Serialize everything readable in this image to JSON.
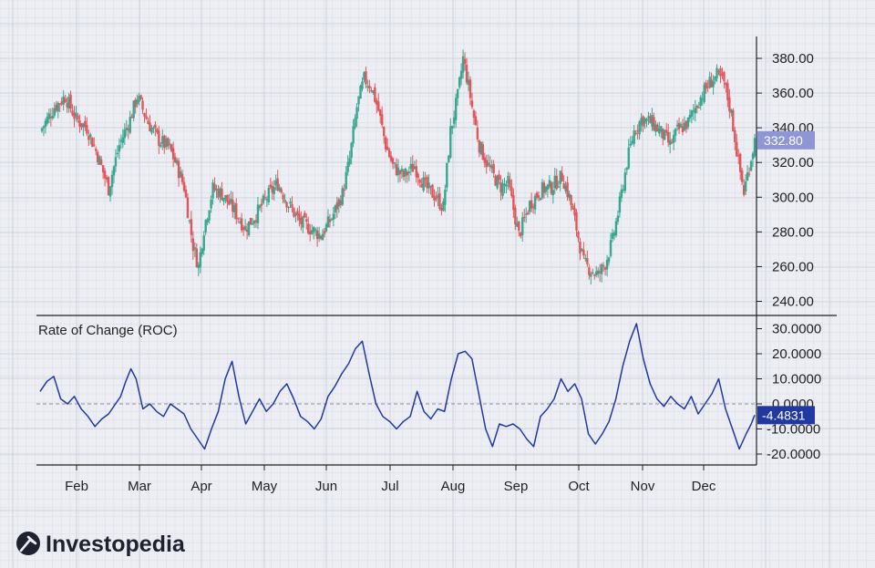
{
  "brand": {
    "name": "Investopedia"
  },
  "colors": {
    "background": "#eceef4",
    "grid_minor": "#dcdfe8",
    "grid_major": "#c9ccd6",
    "up": "#3aa68f",
    "down": "#e0575b",
    "roc_line": "#2138a0",
    "price_tag": "#8e96d3",
    "roc_tag": "#2138a0",
    "axis": "#222222"
  },
  "chart_data": [
    {
      "type": "candlestick",
      "title": "",
      "x_tick_labels": [
        "Feb",
        "Mar",
        "Apr",
        "May",
        "Jun",
        "Jul",
        "Aug",
        "Sep",
        "Oct",
        "Nov",
        "Dec"
      ],
      "y_tick_labels": [
        "240.00",
        "260.00",
        "280.00",
        "300.00",
        "320.00",
        "340.00",
        "360.00",
        "380.00"
      ],
      "ylim": [
        235,
        395
      ],
      "grid": true,
      "last_value_tag": "332.80",
      "close_path": [
        [
          0,
          338
        ],
        [
          8,
          352
        ],
        [
          14,
          358
        ],
        [
          20,
          345
        ],
        [
          26,
          340
        ],
        [
          32,
          324
        ],
        [
          38,
          305
        ],
        [
          44,
          330
        ],
        [
          50,
          345
        ],
        [
          54,
          358
        ],
        [
          60,
          343
        ],
        [
          66,
          333
        ],
        [
          72,
          328
        ],
        [
          76,
          318
        ],
        [
          80,
          306
        ],
        [
          85,
          272
        ],
        [
          88,
          260
        ],
        [
          91,
          282
        ],
        [
          96,
          305
        ],
        [
          101,
          302
        ],
        [
          108,
          292
        ],
        [
          114,
          282
        ],
        [
          120,
          290
        ],
        [
          126,
          300
        ],
        [
          132,
          308
        ],
        [
          138,
          296
        ],
        [
          144,
          286
        ],
        [
          150,
          282
        ],
        [
          156,
          278
        ],
        [
          162,
          288
        ],
        [
          168,
          302
        ],
        [
          172,
          322
        ],
        [
          176,
          352
        ],
        [
          180,
          368
        ],
        [
          184,
          364
        ],
        [
          188,
          350
        ],
        [
          192,
          330
        ],
        [
          196,
          318
        ],
        [
          202,
          312
        ],
        [
          208,
          318
        ],
        [
          214,
          306
        ],
        [
          220,
          300
        ],
        [
          224,
          294
        ],
        [
          228,
          338
        ],
        [
          232,
          358
        ],
        [
          235,
          380
        ],
        [
          238,
          364
        ],
        [
          241,
          346
        ],
        [
          244,
          330
        ],
        [
          248,
          320
        ],
        [
          252,
          312
        ],
        [
          256,
          306
        ],
        [
          260,
          308
        ],
        [
          266,
          278
        ],
        [
          272,
          296
        ],
        [
          278,
          304
        ],
        [
          284,
          306
        ],
        [
          290,
          312
        ],
        [
          294,
          300
        ],
        [
          298,
          282
        ],
        [
          302,
          262
        ],
        [
          306,
          258
        ],
        [
          310,
          255
        ],
        [
          314,
          262
        ],
        [
          318,
          275
        ],
        [
          322,
          296
        ],
        [
          326,
          320
        ],
        [
          330,
          338
        ],
        [
          334,
          345
        ],
        [
          340,
          343
        ],
        [
          346,
          336
        ],
        [
          350,
          330
        ],
        [
          354,
          338
        ],
        [
          360,
          343
        ],
        [
          366,
          356
        ],
        [
          372,
          366
        ],
        [
          376,
          370
        ],
        [
          380,
          366
        ],
        [
          384,
          348
        ],
        [
          388,
          320
        ],
        [
          391,
          303
        ],
        [
          394,
          318
        ],
        [
          397,
          332.8
        ]
      ]
    },
    {
      "type": "line",
      "title": "Rate of Change (ROC)",
      "series": [
        {
          "name": "",
          "x_range": [
            0,
            397
          ]
        }
      ],
      "x_tick_labels": [
        "Feb",
        "Mar",
        "Apr",
        "May",
        "Jun",
        "Jul",
        "Aug",
        "Sep",
        "Oct",
        "Nov",
        "Dec"
      ],
      "y_tick_labels": [
        "30.0000",
        "20.0000",
        "10.0000",
        "0.0000",
        "-10.0000",
        "-20.0000"
      ],
      "ylim": [
        -25,
        35
      ],
      "zero_line": "dashed",
      "grid": true,
      "last_value_tag": "-4.4831",
      "points": [
        [
          0,
          5
        ],
        [
          4,
          9
        ],
        [
          8,
          11
        ],
        [
          12,
          2
        ],
        [
          16,
          0
        ],
        [
          20,
          3
        ],
        [
          24,
          -2
        ],
        [
          28,
          -5
        ],
        [
          32,
          -9
        ],
        [
          36,
          -6
        ],
        [
          40,
          -4
        ],
        [
          44,
          0
        ],
        [
          47,
          3
        ],
        [
          50,
          9
        ],
        [
          53,
          14
        ],
        [
          56,
          10
        ],
        [
          60,
          -2
        ],
        [
          64,
          0
        ],
        [
          68,
          -3
        ],
        [
          72,
          -5
        ],
        [
          76,
          0
        ],
        [
          80,
          -2
        ],
        [
          84,
          -4
        ],
        [
          88,
          -10
        ],
        [
          92,
          -14
        ],
        [
          96,
          -18
        ],
        [
          100,
          -10
        ],
        [
          104,
          -3
        ],
        [
          108,
          10
        ],
        [
          112,
          17
        ],
        [
          116,
          3
        ],
        [
          120,
          -8
        ],
        [
          124,
          -3
        ],
        [
          128,
          2
        ],
        [
          132,
          -3
        ],
        [
          136,
          0
        ],
        [
          140,
          5
        ],
        [
          144,
          8
        ],
        [
          148,
          2
        ],
        [
          152,
          -5
        ],
        [
          156,
          -7
        ],
        [
          160,
          -10
        ],
        [
          164,
          -6
        ],
        [
          168,
          3
        ],
        [
          172,
          7
        ],
        [
          176,
          12
        ],
        [
          180,
          16
        ],
        [
          184,
          22
        ],
        [
          188,
          25
        ],
        [
          192,
          12
        ],
        [
          196,
          0
        ],
        [
          200,
          -5
        ],
        [
          204,
          -7
        ],
        [
          208,
          -10
        ],
        [
          212,
          -7
        ],
        [
          216,
          -5
        ],
        [
          220,
          5
        ],
        [
          224,
          -3
        ],
        [
          228,
          -6
        ],
        [
          232,
          -2
        ],
        [
          236,
          -3
        ],
        [
          240,
          10
        ],
        [
          244,
          20
        ],
        [
          248,
          21
        ],
        [
          252,
          18
        ],
        [
          256,
          4
        ],
        [
          260,
          -10
        ],
        [
          264,
          -17
        ],
        [
          268,
          -8
        ],
        [
          272,
          -9
        ],
        [
          276,
          -8
        ],
        [
          280,
          -10
        ],
        [
          284,
          -14
        ],
        [
          288,
          -17
        ],
        [
          292,
          -5
        ],
        [
          296,
          -2
        ],
        [
          300,
          2
        ],
        [
          304,
          10
        ],
        [
          308,
          5
        ],
        [
          312,
          8
        ],
        [
          316,
          2
        ],
        [
          320,
          -12
        ],
        [
          324,
          -16
        ],
        [
          328,
          -12
        ],
        [
          332,
          -7
        ],
        [
          336,
          2
        ],
        [
          340,
          15
        ],
        [
          344,
          25
        ],
        [
          348,
          32
        ],
        [
          352,
          18
        ],
        [
          356,
          8
        ],
        [
          360,
          2
        ],
        [
          364,
          -1
        ],
        [
          368,
          3
        ],
        [
          372,
          0
        ],
        [
          376,
          -2
        ],
        [
          380,
          3
        ],
        [
          384,
          -4
        ],
        [
          388,
          0
        ],
        [
          392,
          4
        ],
        [
          396,
          10
        ],
        [
          400,
          -2
        ],
        [
          404,
          -10
        ],
        [
          408,
          -18
        ],
        [
          412,
          -12
        ],
        [
          415,
          -8
        ],
        [
          417,
          -4.4831
        ]
      ]
    }
  ]
}
